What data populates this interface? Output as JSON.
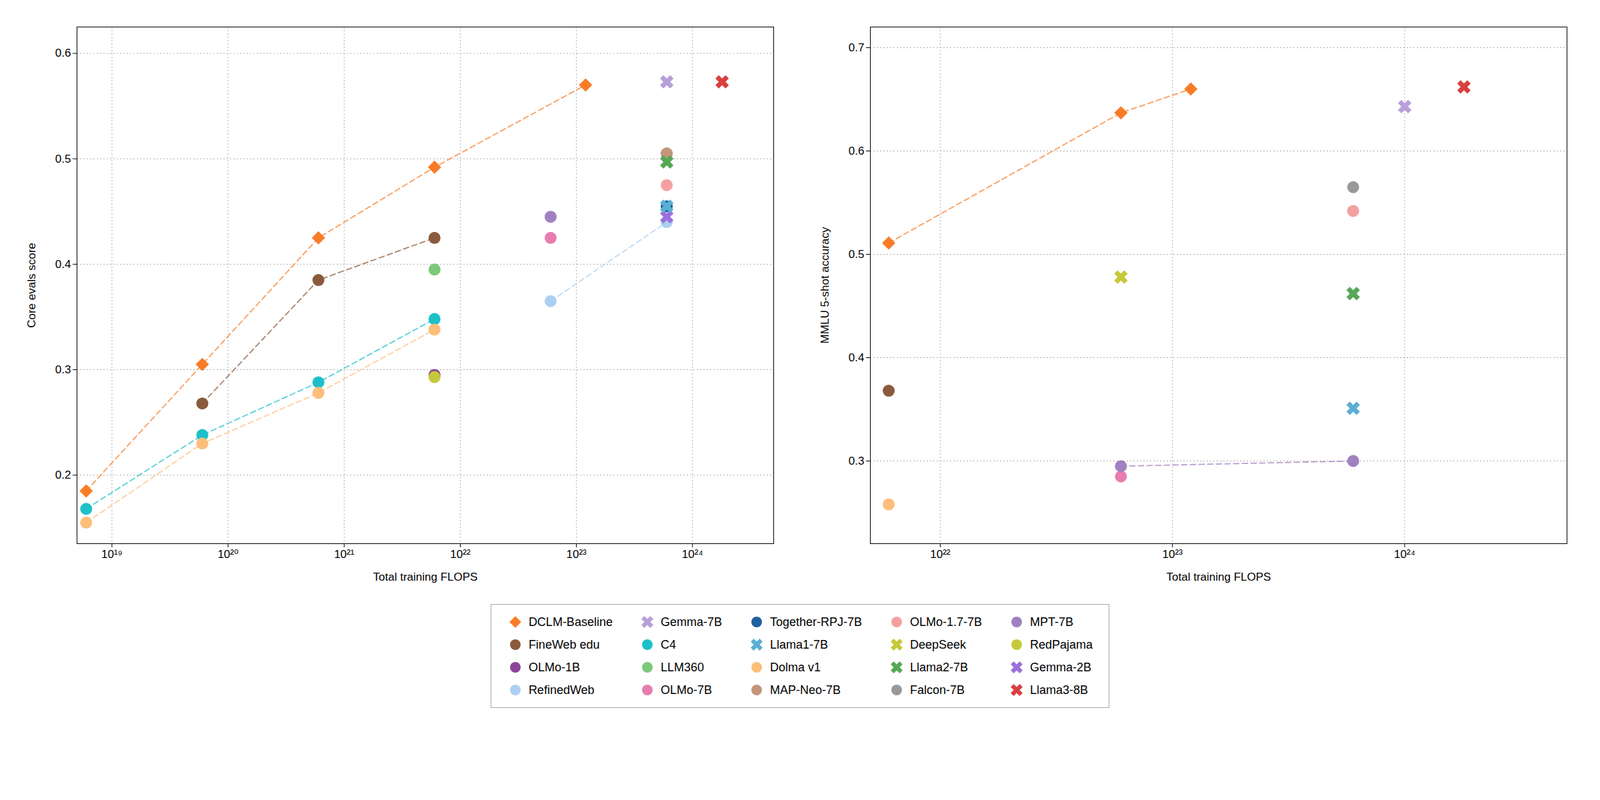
{
  "chart_data": [
    {
      "type": "scatter",
      "x_label": "Total training FLOPS",
      "y_label": "Core evals score",
      "log": "x",
      "grid": true,
      "xlim": [
        5e+18,
        5e+24
      ],
      "xticks": [
        {
          "value": 1e+19,
          "label": "10¹⁹"
        },
        {
          "value": 1e+20,
          "label": "10²⁰"
        },
        {
          "value": 1e+21,
          "label": "10²¹"
        },
        {
          "value": 1e+22,
          "label": "10²²"
        },
        {
          "value": 1e+23,
          "label": "10²³"
        },
        {
          "value": 1e+24,
          "label": "10²⁴"
        }
      ],
      "ylim": [
        0.135,
        0.625
      ],
      "yticks": [
        0.2,
        0.3,
        0.4,
        0.5,
        0.6
      ],
      "series": [
        {
          "name": "DCLM-Baseline",
          "color": "#F87C28",
          "marker": "diamond",
          "line_style": "dashed",
          "x": [
            6e+18,
            6e+19,
            6e+20,
            6e+21,
            1.2e+23
          ],
          "values": [
            0.185,
            0.305,
            0.425,
            0.492,
            0.57
          ]
        },
        {
          "name": "C4",
          "color": "#1EC0C8",
          "marker": "circle",
          "line_style": "dashed",
          "x": [
            6e+18,
            6e+19,
            6e+20,
            6e+21
          ],
          "values": [
            0.168,
            0.238,
            0.288,
            0.348
          ]
        },
        {
          "name": "Dolma v1",
          "color": "#FDBE7A",
          "marker": "circle",
          "line_style": "dashed",
          "x": [
            6e+18,
            6e+19,
            6e+20,
            6e+21
          ],
          "values": [
            0.155,
            0.23,
            0.278,
            0.338
          ]
        },
        {
          "name": "FineWeb edu",
          "color": "#8B5A3C",
          "marker": "circle",
          "line_style": "dashed",
          "x": [
            6e+19,
            6e+20,
            6e+21
          ],
          "values": [
            0.268,
            0.385,
            0.425
          ]
        },
        {
          "name": "RefinedWeb",
          "color": "#AACFF0",
          "marker": "circle",
          "line_style": "dashed",
          "x": [
            6e+22,
            6e+23
          ],
          "values": [
            0.365,
            0.44
          ]
        },
        {
          "name": "Falcon-7B",
          "color": "#999999",
          "marker": "circle",
          "line_style": "none",
          "x": [
            6e+23
          ],
          "values": [
            0.505
          ]
        },
        {
          "name": "LLM360",
          "color": "#7DC97A",
          "marker": "circle",
          "line_style": "none",
          "x": [
            6e+21
          ],
          "values": [
            0.395
          ]
        },
        {
          "name": "MAP-Neo-7B",
          "color": "#C4957A",
          "marker": "circle",
          "line_style": "none",
          "x": [
            6e+23
          ],
          "values": [
            0.505
          ]
        },
        {
          "name": "MPT-7B",
          "color": "#A080C0",
          "marker": "circle",
          "line_style": "none",
          "x": [
            6e+22
          ],
          "values": [
            0.445
          ]
        },
        {
          "name": "OLMo-1B",
          "color": "#8B4598",
          "marker": "circle",
          "line_style": "none",
          "x": [
            6e+21
          ],
          "values": [
            0.295
          ]
        },
        {
          "name": "OLMo-7B",
          "color": "#E87DB0",
          "marker": "circle",
          "line_style": "none",
          "x": [
            6e+22
          ],
          "values": [
            0.425
          ]
        },
        {
          "name": "OLMo-1.7-7B",
          "color": "#F4A0A0",
          "marker": "circle",
          "line_style": "none",
          "x": [
            6e+23
          ],
          "values": [
            0.475
          ]
        },
        {
          "name": "RedPajama",
          "color": "#C5C939",
          "marker": "circle",
          "line_style": "none",
          "x": [
            6e+21
          ],
          "values": [
            0.293
          ]
        },
        {
          "name": "Together-RPJ-7B",
          "color": "#2060A0",
          "marker": "circle",
          "line_style": "none",
          "x": [
            6e+23
          ],
          "values": [
            0.455
          ]
        },
        {
          "name": "Gemma-2B",
          "color": "#9B70DB",
          "marker": "x",
          "line_style": "none",
          "x": [
            6e+23
          ],
          "values": [
            0.445
          ]
        },
        {
          "name": "Gemma-7B",
          "color": "#B89FD8",
          "marker": "x",
          "line_style": "none",
          "x": [
            6e+23
          ],
          "values": [
            0.573
          ]
        },
        {
          "name": "Llama1-7B",
          "color": "#5AAFD5",
          "marker": "x",
          "line_style": "none",
          "x": [
            6e+23
          ],
          "values": [
            0.455
          ]
        },
        {
          "name": "Llama2-7B",
          "color": "#55A855",
          "marker": "x",
          "line_style": "none",
          "x": [
            6e+23
          ],
          "values": [
            0.497
          ]
        },
        {
          "name": "Llama3-8B",
          "color": "#D94040",
          "marker": "x",
          "line_style": "none",
          "x": [
            1.8e+24
          ],
          "values": [
            0.573
          ]
        }
      ]
    },
    {
      "type": "scatter",
      "x_label": "Total training FLOPS",
      "y_label": "MMLU 5-shot accuracy",
      "log": "x",
      "grid": true,
      "xlim": [
        5e+21,
        5e+24
      ],
      "xticks": [
        {
          "value": 1e+22,
          "label": "10²²"
        },
        {
          "value": 1e+23,
          "label": "10²³"
        },
        {
          "value": 1e+24,
          "label": "10²⁴"
        }
      ],
      "ylim": [
        0.22,
        0.72
      ],
      "yticks": [
        0.3,
        0.4,
        0.5,
        0.6,
        0.7
      ],
      "series": [
        {
          "name": "DCLM-Baseline",
          "color": "#F87C28",
          "marker": "diamond",
          "line_style": "dashed",
          "x": [
            6e+21,
            6e+22,
            1.2e+23
          ],
          "values": [
            0.511,
            0.637,
            0.66
          ]
        },
        {
          "name": "Dolma v1",
          "color": "#FDBE7A",
          "marker": "circle",
          "line_style": "none",
          "x": [
            6e+21
          ],
          "values": [
            0.258
          ]
        },
        {
          "name": "Falcon-7B",
          "color": "#999999",
          "marker": "circle",
          "line_style": "none",
          "x": [
            6e+23
          ],
          "values": [
            0.565
          ]
        },
        {
          "name": "FineWeb edu",
          "color": "#8B5A3C",
          "marker": "circle",
          "line_style": "none",
          "x": [
            6e+21
          ],
          "values": [
            0.368
          ]
        },
        {
          "name": "OLMo-7B",
          "color": "#E87DB0",
          "marker": "circle",
          "line_style": "none",
          "x": [
            6e+22
          ],
          "values": [
            0.285
          ]
        },
        {
          "name": "OLMo-1.7-7B",
          "color": "#F4A0A0",
          "marker": "circle",
          "line_style": "none",
          "x": [
            6e+23
          ],
          "values": [
            0.542
          ]
        },
        {
          "name": "MPT-7B",
          "color": "#A080C0",
          "marker": "circle",
          "line_style": "dashed",
          "x": [
            6e+22,
            6e+23
          ],
          "values": [
            0.295,
            0.3
          ]
        },
        {
          "name": "Llama1-7B",
          "color": "#5AAFD5",
          "marker": "x",
          "line_style": "none",
          "x": [
            6e+23
          ],
          "values": [
            0.351
          ]
        },
        {
          "name": "Llama2-7B",
          "color": "#55A855",
          "marker": "x",
          "line_style": "none",
          "x": [
            6e+23
          ],
          "values": [
            0.462
          ]
        },
        {
          "name": "Llama3-8B",
          "color": "#D94040",
          "marker": "x",
          "line_style": "none",
          "x": [
            1.8e+24
          ],
          "values": [
            0.662
          ]
        },
        {
          "name": "Gemma-7B",
          "color": "#B89FD8",
          "marker": "x",
          "line_style": "none",
          "x": [
            1e+24
          ],
          "values": [
            0.643
          ]
        },
        {
          "name": "DeepSeek",
          "color": "#C5C939",
          "marker": "x",
          "line_style": "none",
          "x": [
            6e+22
          ],
          "values": [
            0.478
          ]
        }
      ]
    },
    {
      "type": "legend",
      "legend": "bottom",
      "series": [
        {
          "name": "DCLM-Baseline",
          "color": "#F87C28",
          "marker": "diamond"
        },
        {
          "name": "FineWeb edu",
          "color": "#8B5A3C",
          "marker": "circle"
        },
        {
          "name": "OLMo-1B",
          "color": "#8B4598",
          "marker": "circle"
        },
        {
          "name": "RefinedWeb",
          "color": "#AACFF0",
          "marker": "circle"
        },
        {
          "name": "Gemma-7B",
          "color": "#B89FD8",
          "marker": "x"
        },
        {
          "name": "C4",
          "color": "#1EC0C8",
          "marker": "circle"
        },
        {
          "name": "LLM360",
          "color": "#7DC97A",
          "marker": "circle"
        },
        {
          "name": "OLMo-7B",
          "color": "#E87DB0",
          "marker": "circle"
        },
        {
          "name": "Together-RPJ-7B",
          "color": "#2060A0",
          "marker": "circle"
        },
        {
          "name": "Llama1-7B",
          "color": "#5AAFD5",
          "marker": "x"
        },
        {
          "name": "Dolma v1",
          "color": "#FDBE7A",
          "marker": "circle"
        },
        {
          "name": "MAP-Neo-7B",
          "color": "#C4957A",
          "marker": "circle"
        },
        {
          "name": "OLMo-1.7-7B",
          "color": "#F4A0A0",
          "marker": "circle"
        },
        {
          "name": "DeepSeek",
          "color": "#C5C939",
          "marker": "x"
        },
        {
          "name": "Llama2-7B",
          "color": "#55A855",
          "marker": "x"
        },
        {
          "name": "Falcon-7B",
          "color": "#999999",
          "marker": "circle"
        },
        {
          "name": "MPT-7B",
          "color": "#A080C0",
          "marker": "circle"
        },
        {
          "name": "RedPajama",
          "color": "#C5C939",
          "marker": "circle"
        },
        {
          "name": "Gemma-2B",
          "color": "#9B70DB",
          "marker": "x"
        },
        {
          "name": "Llama3-8B",
          "color": "#D94040",
          "marker": "x"
        }
      ]
    }
  ]
}
